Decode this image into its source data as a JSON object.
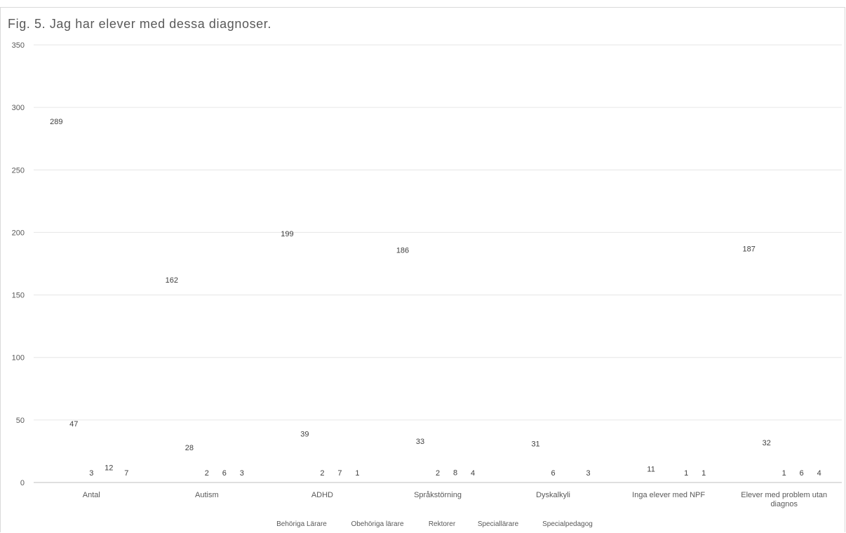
{
  "chart_data": {
    "type": "line",
    "title": "Fig. 5. Jag har elever med dessa diagnoser.",
    "xlabel": "",
    "ylabel": "",
    "ylim": [
      0,
      350
    ],
    "yticks": [
      0,
      50,
      100,
      150,
      200,
      250,
      300,
      350
    ],
    "grid": true,
    "legend_position": "bottom",
    "categories": [
      "Antal",
      "Autism",
      "ADHD",
      "Språkstörning",
      "Dyskalkyli",
      "Inga  elever med NPF",
      "Elever med problem utan diagnos"
    ],
    "series": [
      {
        "name": "Behöriga Lärare",
        "values": [
          289,
          162,
          199,
          186,
          null,
          null,
          187
        ]
      },
      {
        "name": "Obehöriga lärare",
        "values": [
          47,
          28,
          39,
          33,
          31,
          11,
          32
        ]
      },
      {
        "name": "Rektorer",
        "values": [
          3,
          2,
          2,
          2,
          6,
          null,
          1
        ]
      },
      {
        "name": "Speciallärare",
        "values": [
          12,
          6,
          7,
          8,
          null,
          1,
          6
        ]
      },
      {
        "name": "Specialpedagog",
        "values": [
          7,
          3,
          1,
          4,
          3,
          1,
          4
        ]
      }
    ]
  }
}
